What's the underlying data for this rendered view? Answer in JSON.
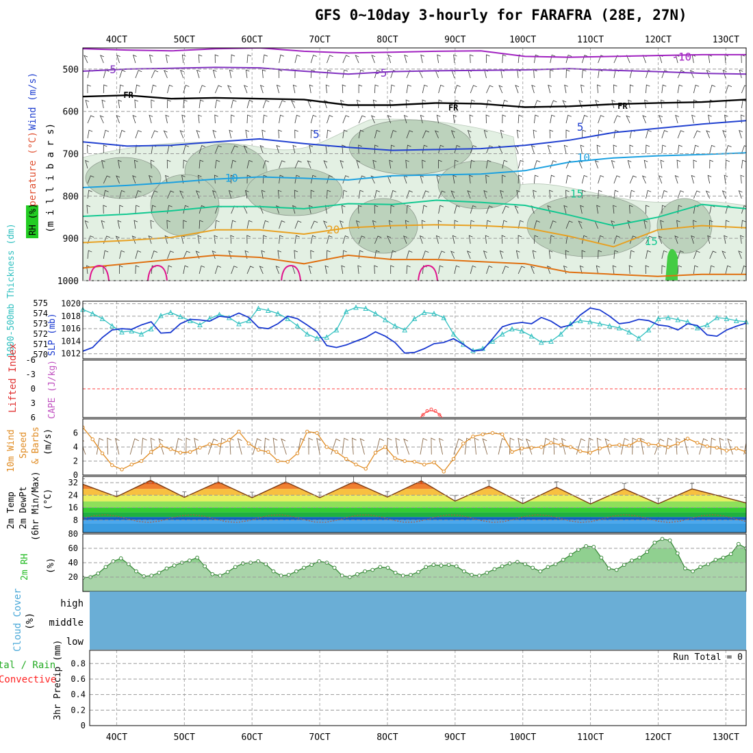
{
  "title": "GFS 0~10day 3-hourly for FARAFRA (28E, 27N)",
  "colors": {
    "temp5": "#2040d0",
    "temp10": "#1aa0e0",
    "temp15": "#10c890",
    "temp20": "#e8a020",
    "temp25": "#e07010",
    "temp30": "#e0108c",
    "tempm10": "#a020c0",
    "tempm5": "#8030c0",
    "fr": "#000000",
    "thickness": "#30c0c0",
    "slp": "#1838d0",
    "wind10": "#e08a20",
    "rh2m": "#22bb22",
    "cloud": "#6aaed6",
    "cape": "#ff4040",
    "precip_label": "#ff2020"
  },
  "chart_data": [
    {
      "name": "upper-air",
      "type": "contour",
      "ylabel_parts": [
        "Wind (m/s)",
        "Temperature (°C)",
        "RH (%)",
        "(m i l l i b a r s)"
      ],
      "ylim": [
        1000,
        450
      ],
      "yticks": [
        500,
        600,
        700,
        800,
        900,
        1000
      ],
      "xlabels": [
        "4OCT",
        "5OCT",
        "6OCT",
        "7OCT",
        "8OCT",
        "9OCT",
        "10OCT",
        "11OCT",
        "12OCT",
        "13OCT"
      ],
      "x_tick_days": [
        4,
        5,
        6,
        7,
        8,
        9,
        10,
        11,
        12,
        13
      ],
      "x_range_days": [
        3.5,
        13.3
      ],
      "isotherm_labels": [
        {
          "label": "-10",
          "day": 12.2,
          "p": 472
        },
        {
          "label": "-5",
          "day": 3.8,
          "p": 502
        },
        {
          "label": "-5",
          "day": 7.8,
          "p": 510
        },
        {
          "label": "FR",
          "day": 4.1,
          "p": 560
        },
        {
          "label": "FR",
          "day": 8.9,
          "p": 590
        },
        {
          "label": "FR",
          "day": 11.4,
          "p": 586
        },
        {
          "label": "5",
          "day": 6.9,
          "p": 655
        },
        {
          "label": "5",
          "day": 10.8,
          "p": 638
        },
        {
          "label": "10",
          "day": 5.6,
          "p": 758
        },
        {
          "label": "10",
          "day": 10.8,
          "p": 710
        },
        {
          "label": "15",
          "day": 10.7,
          "p": 795
        },
        {
          "label": "20",
          "day": 7.1,
          "p": 880
        },
        {
          "label": "15",
          "day": 11.8,
          "p": 908
        }
      ],
      "series": [
        {
          "name": "-10",
          "p": [
            452,
            455,
            457,
            452,
            450,
            458,
            462,
            460,
            458,
            457,
            470,
            472,
            470,
            468,
            466,
            466
          ]
        },
        {
          "name": "-5",
          "p": [
            505,
            500,
            498,
            496,
            497,
            505,
            512,
            506,
            504,
            503,
            502,
            499,
            503,
            506,
            510,
            512
          ]
        },
        {
          "name": "FR",
          "p": [
            565,
            562,
            570,
            568,
            570,
            572,
            585,
            585,
            580,
            582,
            590,
            588,
            583,
            580,
            578,
            572
          ]
        },
        {
          "name": "5",
          "p": [
            672,
            682,
            680,
            672,
            665,
            676,
            685,
            692,
            690,
            688,
            680,
            668,
            650,
            640,
            630,
            622
          ]
        },
        {
          "name": "10",
          "p": [
            780,
            775,
            768,
            760,
            755,
            758,
            762,
            752,
            750,
            748,
            740,
            720,
            710,
            705,
            702,
            698
          ]
        },
        {
          "name": "15",
          "p": [
            848,
            843,
            835,
            825,
            825,
            830,
            818,
            820,
            810,
            815,
            822,
            845,
            870,
            850,
            820,
            830
          ]
        },
        {
          "name": "20",
          "p": [
            910,
            905,
            898,
            880,
            880,
            890,
            875,
            870,
            868,
            870,
            875,
            895,
            920,
            880,
            870,
            875
          ]
        },
        {
          "name": "25",
          "p": [
            970,
            960,
            950,
            940,
            945,
            960,
            940,
            950,
            950,
            955,
            960,
            980,
            985,
            990,
            985,
            985
          ]
        }
      ]
    },
    {
      "name": "thickness-slp",
      "type": "line",
      "ylabel_left": "1000-500mb Thickness (dm)",
      "ylabel_right": "SLP (mb)",
      "thickness_ticks": [
        570,
        571,
        572,
        573,
        574,
        575
      ],
      "slp_ticks": [
        1012,
        1014,
        1016,
        1018,
        1020
      ],
      "thickness_ylim": [
        569.6,
        575.2
      ],
      "slp_ylim": [
        1011.2,
        1020.4
      ],
      "series": [
        {
          "name": "1000-500mb Thickness",
          "values": [
            574.4,
            574.0,
            573.5,
            572.8,
            572.2,
            572.3,
            572.0,
            572.5,
            573.8,
            574.1,
            573.7,
            573.3,
            572.9,
            573.5,
            573.9,
            573.6,
            573.0,
            573.3,
            574.5,
            574.3,
            574.0,
            573.5,
            572.8,
            572.0,
            571.6,
            571.7,
            572.4,
            574.2,
            574.6,
            574.5,
            574.0,
            573.4,
            572.8,
            572.4,
            573.5,
            574.1,
            574.0,
            573.6,
            572.0,
            571.0,
            570.4,
            570.6,
            571.3,
            572.0,
            572.5,
            572.3,
            571.8,
            571.2,
            571.3,
            572.0,
            573.0,
            573.3,
            573.2,
            573.0,
            572.8,
            572.6,
            572.2,
            571.6,
            572.4,
            573.5,
            573.6,
            573.4,
            573.2,
            572.6,
            572.9,
            573.6,
            573.5,
            573.3,
            573.2
          ]
        },
        {
          "name": "SLP",
          "values": [
            1012.4,
            1013.0,
            1014.6,
            1015.8,
            1016.0,
            1015.9,
            1016.6,
            1017.1,
            1015.3,
            1015.4,
            1016.8,
            1017.5,
            1017.4,
            1017.2,
            1018.0,
            1017.8,
            1018.5,
            1017.8,
            1016.2,
            1016.0,
            1016.8,
            1018.0,
            1017.6,
            1016.6,
            1015.5,
            1013.3,
            1013.0,
            1013.4,
            1014.0,
            1014.6,
            1015.5,
            1014.8,
            1013.8,
            1012.1,
            1012.2,
            1012.8,
            1013.6,
            1013.8,
            1014.4,
            1013.5,
            1012.4,
            1012.6,
            1014.4,
            1016.3,
            1016.8,
            1017.0,
            1016.8,
            1017.8,
            1017.2,
            1016.2,
            1016.6,
            1018.2,
            1019.3,
            1019.0,
            1018.0,
            1016.8,
            1017.0,
            1017.5,
            1017.3,
            1016.6,
            1016.4,
            1015.8,
            1016.8,
            1016.5,
            1015.0,
            1014.8,
            1015.8,
            1016.4,
            1016.9
          ]
        }
      ]
    },
    {
      "name": "stability",
      "type": "line",
      "ylabel_left": "Lifted Index",
      "ylabel_right": "CAPE (J/kg)",
      "li_ticks": [
        -6,
        -3,
        0,
        3,
        6
      ],
      "li_tick_labels": [
        "-6",
        "-3",
        "0",
        "3",
        "6"
      ]
    },
    {
      "name": "10m-wind",
      "type": "line",
      "ylabel": "10m Wind Speed & Barbs (m/s)",
      "ylabel_parts": [
        "10m Wind",
        "Speed",
        "& Barbs",
        "(m/s)"
      ],
      "yticks": [
        0,
        2,
        4,
        6
      ],
      "ylim": [
        0,
        8
      ],
      "values": [
        6.8,
        5.1,
        3.1,
        1.4,
        0.8,
        1.5,
        2.0,
        3.3,
        4.2,
        3.7,
        3.2,
        3.3,
        3.9,
        4.4,
        4.3,
        5.0,
        6.2,
        4.5,
        3.6,
        3.3,
        2.0,
        1.9,
        3.1,
        6.2,
        6.0,
        4.0,
        3.3,
        2.3,
        1.5,
        0.9,
        3.2,
        4.0,
        2.4,
        2.0,
        1.9,
        1.5,
        1.8,
        0.5,
        2.3,
        4.5,
        5.5,
        5.8,
        6.0,
        5.8,
        3.3,
        3.8,
        3.9,
        4.0,
        4.6,
        4.3,
        4.0,
        3.4,
        3.2,
        3.8,
        4.2,
        4.3,
        4.2,
        5.0,
        4.4,
        4.3,
        4.0,
        4.5,
        5.2,
        4.6,
        4.1,
        3.9,
        3.5,
        3.8,
        3.3
      ]
    },
    {
      "name": "2m-temp",
      "type": "area",
      "ylabel_parts": [
        "2m Temp",
        "2m DewPt",
        "(6hr Min/Max)",
        "(°C)"
      ],
      "yticks": [
        8,
        16,
        24,
        32
      ],
      "ylim": [
        0,
        36
      ],
      "temp_max_days": [
        4.5,
        5.5,
        6.5,
        7.5,
        8.5,
        9.5,
        10.5,
        11.5,
        12.5
      ],
      "temp_max": [
        33.5,
        32.5,
        32.5,
        32.5,
        33.2,
        29.8,
        29.0,
        28.0,
        28.0
      ],
      "temp_min": [
        23.0,
        22.6,
        22.4,
        22.4,
        22.8,
        20.2,
        18.6,
        18.4,
        18.5
      ],
      "dewpoint_range": [
        6.5,
        11.5
      ]
    },
    {
      "name": "2m-rh",
      "type": "area",
      "ylabel_parts": [
        "2m RH",
        "(%)"
      ],
      "yticks": [
        20,
        40,
        60,
        80
      ],
      "ylim": [
        0,
        80
      ],
      "values": [
        19,
        20,
        25,
        34,
        42,
        46,
        38,
        28,
        21,
        22,
        26,
        32,
        36,
        40,
        43,
        47,
        35,
        24,
        22,
        27,
        34,
        39,
        40,
        42,
        38,
        28,
        22,
        23,
        28,
        33,
        37,
        42,
        40,
        33,
        22,
        20,
        24,
        28,
        30,
        34,
        33,
        26,
        22,
        23,
        27,
        34,
        37,
        36,
        37,
        35,
        28,
        23,
        22,
        26,
        31,
        35,
        39,
        41,
        38,
        33,
        28,
        34,
        38,
        44,
        51,
        58,
        63,
        62,
        47,
        32,
        30,
        37,
        43,
        47,
        55,
        68,
        73,
        71,
        53,
        32,
        28,
        34,
        38,
        44,
        47,
        52,
        66,
        60
      ]
    },
    {
      "name": "cloud-cover",
      "type": "heatmap",
      "ylabel": "Cloud Cover (%)",
      "levels": [
        "high",
        "middle",
        "low"
      ]
    },
    {
      "name": "precip",
      "type": "bar",
      "ylabel": "3hr Precip (mm)",
      "legend_left": [
        "Total / Rain",
        "Convective"
      ],
      "yticks": [
        0,
        0.2,
        0.4,
        0.6,
        0.8
      ],
      "ytick_labels": [
        "0",
        "0.2",
        "0.4",
        "0.6",
        "0.8"
      ],
      "ylim": [
        0,
        0.97
      ],
      "run_total_label": "Run Total = 0",
      "values": []
    }
  ]
}
